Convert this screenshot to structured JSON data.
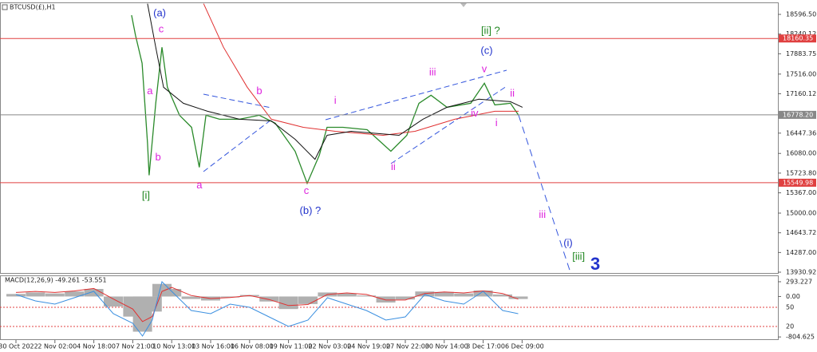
{
  "chart_data": [
    {
      "type": "line",
      "title": "BTCUSD(£),H1",
      "xlim": [
        -0.41,
        19.57
      ],
      "xticks": [
        {
          "value": 0,
          "label": "30 Oct 2022"
        },
        {
          "value": 1,
          "label": "2 Nov 02:00"
        },
        {
          "value": 2,
          "label": "4 Nov 18:00"
        },
        {
          "value": 3,
          "label": "7 Nov 21:00"
        },
        {
          "value": 4,
          "label": "10 Nov 13:00"
        },
        {
          "value": 5,
          "label": "13 Nov 16:00"
        },
        {
          "value": 6,
          "label": "16 Nov 08:00"
        },
        {
          "value": 7,
          "label": "19 Nov 11:00"
        },
        {
          "value": 8,
          "label": "22 Nov 03:00"
        },
        {
          "value": 9,
          "label": "24 Nov 19:00"
        },
        {
          "value": 10,
          "label": "27 Nov 22:00"
        },
        {
          "value": 11,
          "label": "30 Nov 14:00"
        },
        {
          "value": 12,
          "label": "3 Dec 17:00"
        },
        {
          "value": 13,
          "label": "6 Dec 09:00"
        }
      ],
      "ylim": [
        13902,
        18799
      ],
      "yticks": [
        {
          "value": 18596.5,
          "label": "18596.50"
        },
        18240.12,
        17883.75,
        {
          "value": 17516,
          "label": "17516.00"
        },
        17160.12,
        16447.36,
        {
          "value": 16080,
          "label": "16080.00"
        },
        {
          "value": 15723.8,
          "label": "15723.80"
        },
        {
          "value": 15367,
          "label": "15367.00"
        },
        {
          "value": 15000,
          "label": "15000.00"
        },
        14643.72,
        {
          "value": 14287,
          "label": "14287.00"
        },
        13930.92
      ],
      "levels": [
        {
          "value": 18160.35,
          "color": "#e04040"
        },
        {
          "value": 16778.2,
          "label": "16778.20",
          "color": "#888888"
        },
        {
          "value": 15549.98,
          "color": "#e04040"
        }
      ],
      "series": [
        {
          "color": "#2a8a2a",
          "x": [
            2.97,
            3.07,
            3.24,
            3.38,
            3.42,
            3.59,
            3.75,
            3.89,
            4.2,
            4.51,
            4.71,
            4.88,
            5.23,
            5.74,
            6.25,
            6.66,
            7.17,
            7.48,
            7.79,
            7.99,
            8.4,
            9.02,
            9.63,
            10.04,
            10.35,
            10.66,
            11.07,
            11.68,
            12.03,
            12.3,
            12.7,
            12.91
          ],
          "values": [
            18582,
            18220,
            17713,
            16264,
            15684,
            16988,
            18002,
            17278,
            16771,
            16553,
            15829,
            16771,
            16698,
            16698,
            16771,
            16626,
            16119,
            15539,
            16047,
            16553,
            16553,
            16510,
            16119,
            16408,
            16988,
            17133,
            16916,
            16988,
            17350,
            16959,
            16988,
            16771
          ]
        },
        {
          "color": "#e03030",
          "x": [
            4.82,
            5.33,
            5.94,
            6.56,
            7.38,
            8.2,
            9.43,
            10.25,
            11.27,
            12.3,
            12.91
          ],
          "values": [
            18790,
            18002,
            17278,
            16698,
            16553,
            16481,
            16408,
            16481,
            16698,
            16843,
            16843
          ]
        },
        {
          "color": "#111111",
          "x": [
            3.38,
            3.59,
            3.79,
            4.3,
            4.92,
            5.74,
            6.56,
            7.17,
            7.68,
            7.99,
            8.61,
            9.84,
            10.45,
            11.07,
            11.89,
            12.7,
            13.01
          ],
          "values": [
            18790,
            18002,
            17278,
            16988,
            16843,
            16698,
            16669,
            16336,
            15974,
            16408,
            16481,
            16408,
            16698,
            16916,
            17061,
            17017,
            16916
          ]
        },
        {
          "color": "#3355dd",
          "dashed": true,
          "x": [
            12.91,
            14.24
          ],
          "values": [
            16771,
            13930
          ]
        }
      ],
      "annotations": [
        {
          "text": "(a)",
          "x": 3.69,
          "y": 18611,
          "color": "#2233cc"
        },
        {
          "text": "c",
          "x": 3.73,
          "y": 18321,
          "color": "#dd22dd"
        },
        {
          "text": "a",
          "x": 3.44,
          "y": 17205,
          "color": "#dd22dd"
        },
        {
          "text": "b",
          "x": 3.65,
          "y": 16003,
          "color": "#dd22dd"
        },
        {
          "text": "[i]",
          "x": 3.34,
          "y": 15307,
          "color": "#228822"
        },
        {
          "text": "a",
          "x": 4.71,
          "y": 15496,
          "color": "#dd22dd"
        },
        {
          "text": "b",
          "x": 6.25,
          "y": 17205,
          "color": "#dd22dd"
        },
        {
          "text": "c",
          "x": 7.46,
          "y": 15394,
          "color": "#dd22dd"
        },
        {
          "text": "(b) ?",
          "x": 7.56,
          "y": 15032,
          "color": "#2233cc"
        },
        {
          "text": "i",
          "x": 8.2,
          "y": 17032,
          "color": "#dd22dd"
        },
        {
          "text": "ii",
          "x": 9.69,
          "y": 15829,
          "color": "#dd22dd"
        },
        {
          "text": "iii",
          "x": 10.7,
          "y": 17539,
          "color": "#dd22dd"
        },
        {
          "text": "v",
          "x": 12.03,
          "y": 17597,
          "color": "#dd22dd"
        },
        {
          "text": "(c)",
          "x": 12.09,
          "y": 17930,
          "color": "#2233cc"
        },
        {
          "text": "[ii] ?",
          "x": 12.19,
          "y": 18292,
          "color": "#228822"
        },
        {
          "text": "iv",
          "x": 11.78,
          "y": 16800,
          "color": "#dd22dd"
        },
        {
          "text": "i",
          "x": 12.34,
          "y": 16626,
          "color": "#dd22dd"
        },
        {
          "text": "ii",
          "x": 12.75,
          "y": 17162,
          "color": "#dd22dd"
        },
        {
          "text": "iii",
          "x": 13.52,
          "y": 14960,
          "color": "#dd22dd"
        },
        {
          "text": "(i)",
          "x": 14.18,
          "y": 14452,
          "color": "#2233cc"
        },
        {
          "text": "[iii]",
          "x": 14.45,
          "y": 14206,
          "color": "#228822"
        },
        {
          "text": "3",
          "x": 14.88,
          "y": 14061,
          "color": "#2233cc",
          "large": true
        }
      ]
    },
    {
      "type": "macd",
      "title": "MACD(12,26,9) -49.261 -53.551",
      "ylim": [
        -866,
        404
      ],
      "yticks": [
        293.227,
        {
          "value": 0,
          "label": "0.00"
        },
        -804.625
      ],
      "y2lim": [
        -1.25,
        98.75
      ],
      "y2ticks": [
        50,
        20
      ],
      "series": [
        {
          "color": "#b0b0b0",
          "x": [
            0,
            0.5,
            1,
            1.5,
            2,
            2.5,
            3,
            3.25,
            3.5,
            3.75,
            4,
            4.5,
            5,
            5.5,
            6,
            6.5,
            7,
            7.5,
            8,
            8.5,
            9,
            9.5,
            10,
            10.5,
            11,
            11.5,
            12,
            12.5,
            12.9
          ],
          "values": [
            50,
            80,
            60,
            100,
            150,
            -200,
            -400,
            -700,
            -300,
            250,
            150,
            -50,
            -80,
            -20,
            30,
            -100,
            -250,
            -150,
            80,
            60,
            20,
            -120,
            -60,
            100,
            90,
            60,
            120,
            40,
            -50
          ]
        },
        {
          "color": "#e03030",
          "x": [
            0,
            0.5,
            1,
            1.5,
            2,
            2.5,
            3,
            3.25,
            3.5,
            3.75,
            4,
            4.5,
            5,
            5.5,
            6,
            6.5,
            7,
            7.5,
            8,
            8.5,
            9,
            9.5,
            10,
            10.5,
            11,
            11.5,
            12,
            12.5,
            12.9
          ],
          "values": [
            80,
            100,
            80,
            110,
            160,
            -50,
            -250,
            -500,
            -400,
            100,
            180,
            20,
            -40,
            -20,
            20,
            -60,
            -180,
            -160,
            40,
            70,
            40,
            -70,
            -70,
            60,
            90,
            70,
            110,
            60,
            -53
          ]
        },
        {
          "color": "#3a8fe0",
          "axis": "y2",
          "x": [
            0,
            0.5,
            1,
            1.5,
            2,
            2.5,
            3,
            3.25,
            3.5,
            3.75,
            4,
            4.5,
            5,
            5.5,
            6,
            6.5,
            7,
            7.5,
            8,
            8.5,
            9,
            9.5,
            10,
            10.5,
            11,
            11.5,
            12,
            12.5,
            12.9
          ],
          "values": [
            70,
            60,
            55,
            65,
            75,
            40,
            25,
            5,
            30,
            90,
            75,
            45,
            40,
            55,
            50,
            35,
            20,
            30,
            65,
            55,
            45,
            30,
            35,
            70,
            60,
            55,
            75,
            45,
            40
          ]
        }
      ]
    }
  ]
}
